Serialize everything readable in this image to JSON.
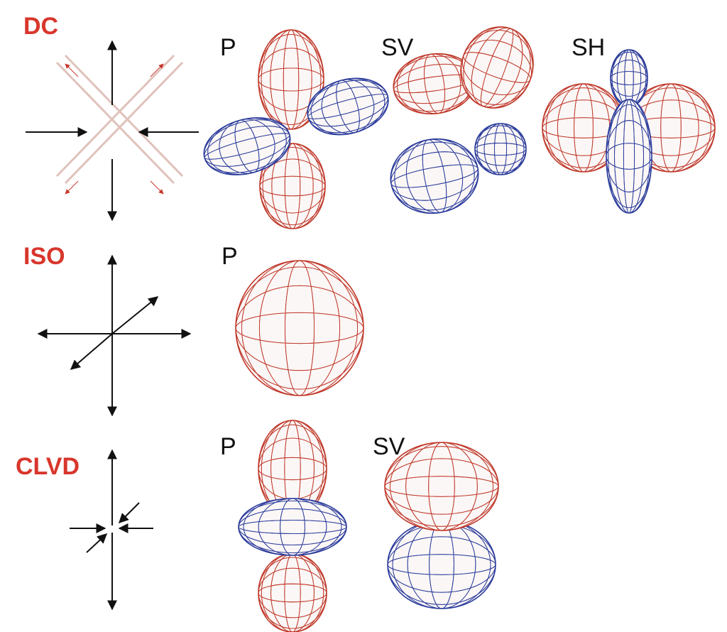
{
  "colors": {
    "label": "#d8362c",
    "arrow_black": "#111111",
    "arrow_red": "#c8372b",
    "cross_line": "#e0c2bc",
    "mesh_red": "#c0392b",
    "mesh_blue": "#2b3c9c",
    "solid_red": "#c8432f",
    "solid_blue": "#3345a8"
  },
  "rows": [
    {
      "id": "dc",
      "label": "DC",
      "waves": [
        {
          "label": "P",
          "shape": "four-lobe"
        },
        {
          "label": "SV",
          "shape": "four-lobe-twisted"
        },
        {
          "label": "SH",
          "shape": "four-lobe-side"
        }
      ]
    },
    {
      "id": "iso",
      "label": "ISO",
      "waves": [
        {
          "label": "P",
          "shape": "sphere"
        }
      ]
    },
    {
      "id": "clvd",
      "label": "CLVD",
      "waves": [
        {
          "label": "P",
          "shape": "two-lobe-with-torus"
        },
        {
          "label": "SV",
          "shape": "stacked-tori"
        }
      ]
    }
  ]
}
